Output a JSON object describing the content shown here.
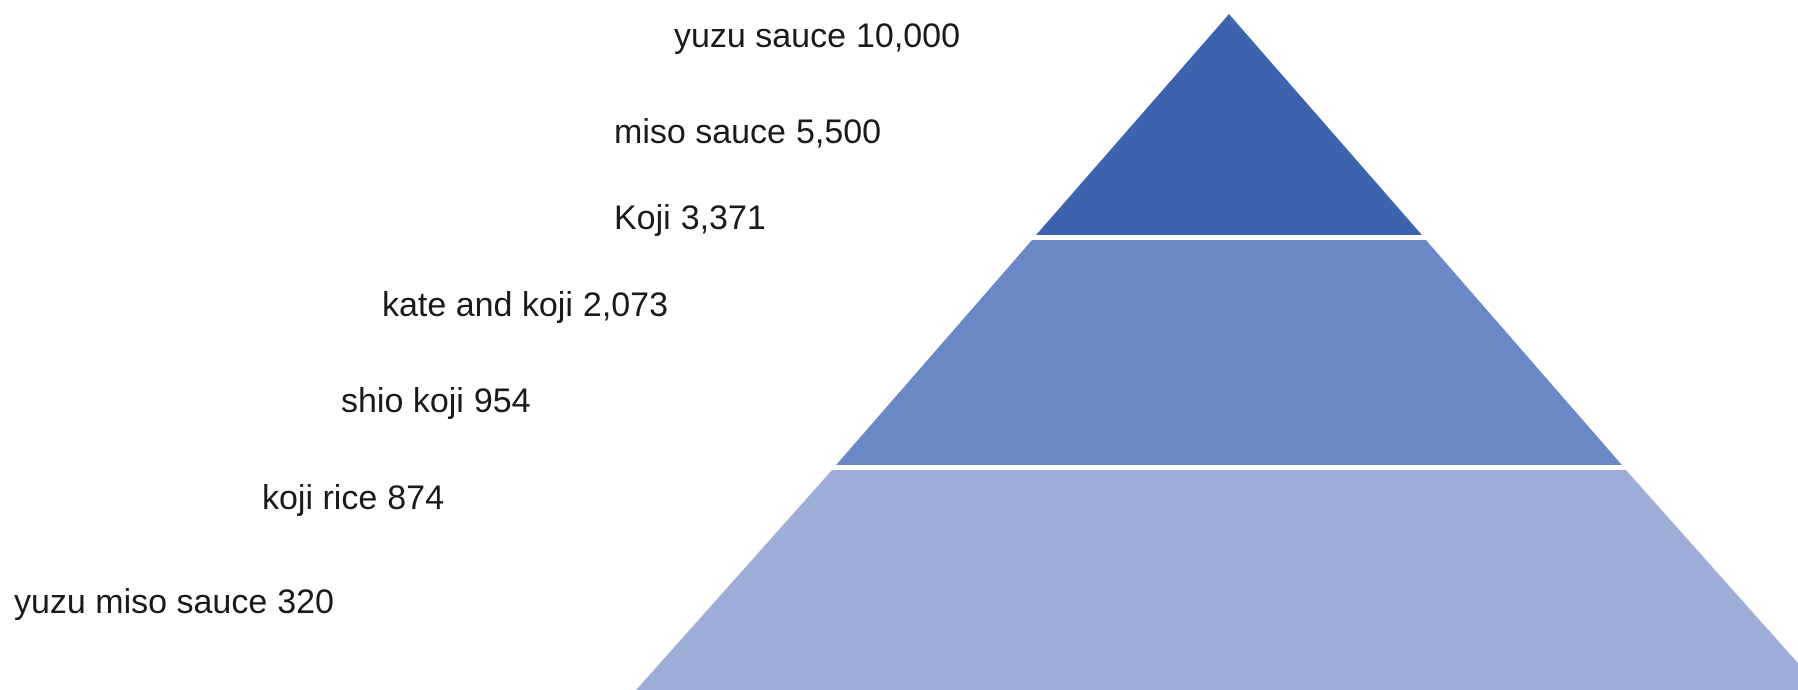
{
  "items": [
    {
      "name": "yuzu sauce",
      "value": "10,000"
    },
    {
      "name": "miso sauce",
      "value": "5,500"
    },
    {
      "name": "Koji",
      "value": "3,371"
    },
    {
      "name": "kate and koji",
      "value": "2,073"
    },
    {
      "name": "shio koji",
      "value": "954"
    },
    {
      "name": "koji rice",
      "value": "874"
    },
    {
      "name": "yuzu miso sauce",
      "value": "320"
    }
  ]
}
